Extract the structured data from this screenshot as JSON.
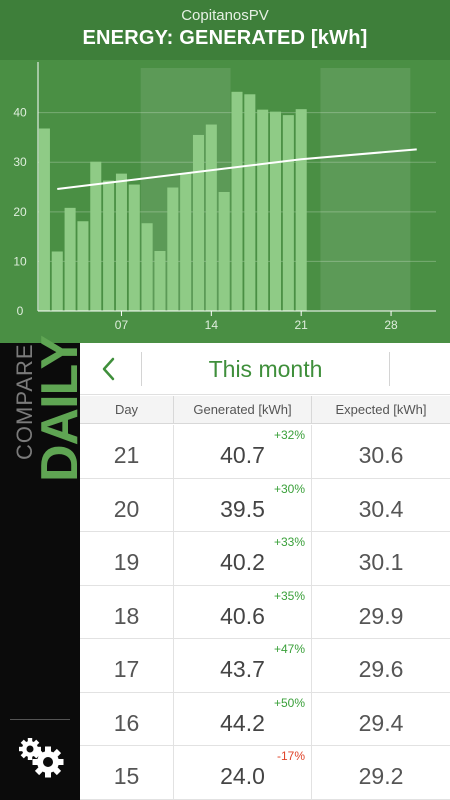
{
  "header": {
    "app_name": "CopitanosPV",
    "title": "ENERGY: GENERATED [kWh]"
  },
  "colors": {
    "header_bg": "#3e7f3a",
    "chart_bg": "#4a8f44",
    "bar": "#8fcb86",
    "accent": "#3f8f3b",
    "positive": "#3aa03a",
    "negative": "#e0442a"
  },
  "chart_data": {
    "type": "bar",
    "title": "",
    "x": [
      1,
      2,
      3,
      4,
      5,
      6,
      7,
      8,
      9,
      10,
      11,
      12,
      13,
      14,
      15,
      16,
      17,
      18,
      19,
      20,
      21
    ],
    "values": [
      36.8,
      12.0,
      20.8,
      18.1,
      30.1,
      26.3,
      27.7,
      25.5,
      17.7,
      12.1,
      24.9,
      27.8,
      35.5,
      37.6,
      24.0,
      44.2,
      43.7,
      40.6,
      40.2,
      39.5,
      40.7
    ],
    "expected_line": {
      "x": [
        2,
        21,
        30
      ],
      "y": [
        24.6,
        30.6,
        32.6
      ]
    },
    "xlim": [
      0.5,
      31.5
    ],
    "ylim": [
      0,
      49
    ],
    "x_tick_labels": [
      "07",
      "14",
      "21",
      "28"
    ],
    "x_ticks": [
      7,
      14,
      21,
      28
    ],
    "y_tick_labels": [
      "0",
      "10",
      "20",
      "30",
      "40"
    ],
    "y_ticks": [
      0,
      10,
      20,
      30,
      40
    ],
    "week_bands": [
      [
        8.5,
        15.5
      ],
      [
        22.5,
        29.5
      ]
    ],
    "grid": true
  },
  "sidebar": {
    "compare_label": "COMPARE",
    "period_label": "DAILY",
    "settings_icon": "gear-icon"
  },
  "nav": {
    "back_icon": "chevron-left-icon",
    "period_title": "This month"
  },
  "table": {
    "columns": [
      "Day",
      "Generated [kWh]",
      "Expected [kWh]"
    ],
    "rows": [
      {
        "day": "21",
        "generated": "40.7",
        "pct": "+32%",
        "expected": "30.6"
      },
      {
        "day": "20",
        "generated": "39.5",
        "pct": "+30%",
        "expected": "30.4"
      },
      {
        "day": "19",
        "generated": "40.2",
        "pct": "+33%",
        "expected": "30.1"
      },
      {
        "day": "18",
        "generated": "40.6",
        "pct": "+35%",
        "expected": "29.9"
      },
      {
        "day": "17",
        "generated": "43.7",
        "pct": "+47%",
        "expected": "29.6"
      },
      {
        "day": "16",
        "generated": "44.2",
        "pct": "+50%",
        "expected": "29.4"
      },
      {
        "day": "15",
        "generated": "24.0",
        "pct": "-17%",
        "expected": "29.2"
      }
    ]
  }
}
